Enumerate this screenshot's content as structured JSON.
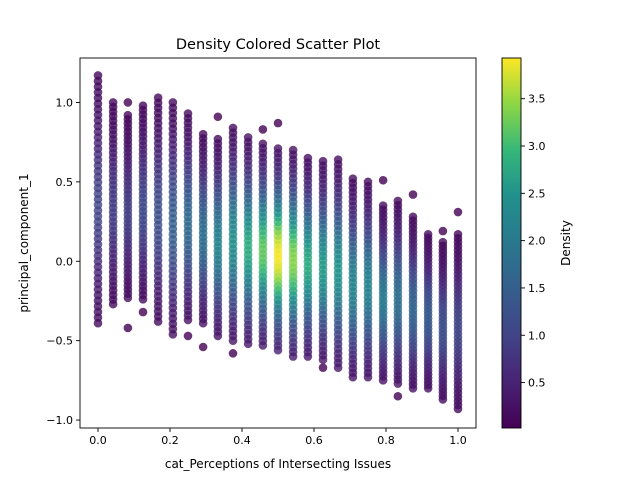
{
  "chart_data": {
    "type": "scatter",
    "title": "Density Colored Scatter Plot",
    "xlabel": "cat_Perceptions of Intersecting Issues",
    "ylabel": "principal_component_1",
    "xlim": [
      -0.05,
      1.05
    ],
    "ylim": [
      -1.05,
      1.28
    ],
    "grid": false,
    "x_ticks": [
      0.0,
      0.2,
      0.4,
      0.6,
      0.8,
      1.0
    ],
    "x_tick_labels": [
      "0.0",
      "0.2",
      "0.4",
      "0.6",
      "0.8",
      "1.0"
    ],
    "y_ticks": [
      -1.0,
      -0.5,
      0.0,
      0.5,
      1.0
    ],
    "y_tick_labels": [
      "−1.0",
      "−0.5",
      "0.0",
      "0.5",
      "1.0"
    ],
    "colormap": "viridis",
    "point_alpha": 0.8,
    "colorbar": {
      "label": "Density",
      "range": [
        0.02,
        3.93
      ],
      "ticks": [
        0.5,
        1.0,
        1.5,
        2.0,
        2.5,
        3.0,
        3.5
      ],
      "tick_labels": [
        "0.5",
        "1.0",
        "1.5",
        "2.0",
        "2.5",
        "3.0",
        "3.5"
      ]
    },
    "columns": [
      {
        "x": 0.0,
        "ymin": -0.39,
        "ymax": 1.17,
        "peak": 1.0,
        "outliers": []
      },
      {
        "x": 0.042,
        "ymin": -0.27,
        "ymax": 1.0,
        "peak": 0.9,
        "outliers": []
      },
      {
        "x": 0.083,
        "ymin": -0.23,
        "ymax": 0.92,
        "peak": 0.9,
        "outliers": [
          [
            0.083,
            1.0
          ],
          [
            0.083,
            -0.42
          ]
        ]
      },
      {
        "x": 0.125,
        "ymin": -0.24,
        "ymax": 0.98,
        "peak": 1.1,
        "outliers": [
          [
            0.125,
            -0.32
          ]
        ]
      },
      {
        "x": 0.167,
        "ymin": -0.38,
        "ymax": 1.03,
        "peak": 1.2,
        "outliers": []
      },
      {
        "x": 0.208,
        "ymin": -0.46,
        "ymax": 1.0,
        "peak": 1.5,
        "outliers": []
      },
      {
        "x": 0.25,
        "ymin": -0.37,
        "ymax": 0.93,
        "peak": 1.7,
        "outliers": [
          [
            0.25,
            -0.47
          ]
        ]
      },
      {
        "x": 0.292,
        "ymin": -0.39,
        "ymax": 0.8,
        "peak": 1.8,
        "outliers": [
          [
            0.292,
            -0.54
          ]
        ]
      },
      {
        "x": 0.333,
        "ymin": -0.47,
        "ymax": 0.77,
        "peak": 2.2,
        "outliers": [
          [
            0.333,
            0.91
          ]
        ]
      },
      {
        "x": 0.375,
        "ymin": -0.5,
        "ymax": 0.84,
        "peak": 2.4,
        "outliers": [
          [
            0.375,
            -0.58
          ]
        ]
      },
      {
        "x": 0.417,
        "ymin": -0.52,
        "ymax": 0.78,
        "peak": 2.8,
        "outliers": []
      },
      {
        "x": 0.458,
        "ymin": -0.53,
        "ymax": 0.74,
        "peak": 3.2,
        "outliers": [
          [
            0.458,
            0.83
          ]
        ]
      },
      {
        "x": 0.5,
        "ymin": -0.56,
        "ymax": 0.71,
        "peak": 3.9,
        "outliers": [
          [
            0.5,
            0.87
          ]
        ]
      },
      {
        "x": 0.542,
        "ymin": -0.6,
        "ymax": 0.7,
        "peak": 3.4,
        "outliers": []
      },
      {
        "x": 0.583,
        "ymin": -0.6,
        "ymax": 0.65,
        "peak": 2.8,
        "outliers": []
      },
      {
        "x": 0.625,
        "ymin": -0.62,
        "ymax": 0.63,
        "peak": 2.6,
        "outliers": [
          [
            0.625,
            -0.67
          ]
        ]
      },
      {
        "x": 0.667,
        "ymin": -0.67,
        "ymax": 0.64,
        "peak": 2.5,
        "outliers": []
      },
      {
        "x": 0.708,
        "ymin": -0.73,
        "ymax": 0.52,
        "peak": 2.2,
        "outliers": []
      },
      {
        "x": 0.75,
        "ymin": -0.73,
        "ymax": 0.5,
        "peak": 2.2,
        "outliers": []
      },
      {
        "x": 0.792,
        "ymin": -0.75,
        "ymax": 0.35,
        "peak": 2.0,
        "outliers": [
          [
            0.792,
            0.51
          ]
        ]
      },
      {
        "x": 0.833,
        "ymin": -0.77,
        "ymax": 0.38,
        "peak": 1.8,
        "outliers": [
          [
            0.833,
            -0.85
          ]
        ]
      },
      {
        "x": 0.875,
        "ymin": -0.8,
        "ymax": 0.28,
        "peak": 1.6,
        "outliers": [
          [
            0.875,
            0.42
          ]
        ]
      },
      {
        "x": 0.917,
        "ymin": -0.8,
        "ymax": 0.17,
        "peak": 1.4,
        "outliers": []
      },
      {
        "x": 0.958,
        "ymin": -0.87,
        "ymax": 0.12,
        "peak": 1.2,
        "outliers": [
          [
            0.958,
            0.19
          ]
        ]
      },
      {
        "x": 1.0,
        "ymin": -0.93,
        "ymax": 0.17,
        "peak": 1.0,
        "outliers": [
          [
            1.0,
            0.31
          ]
        ]
      }
    ]
  }
}
